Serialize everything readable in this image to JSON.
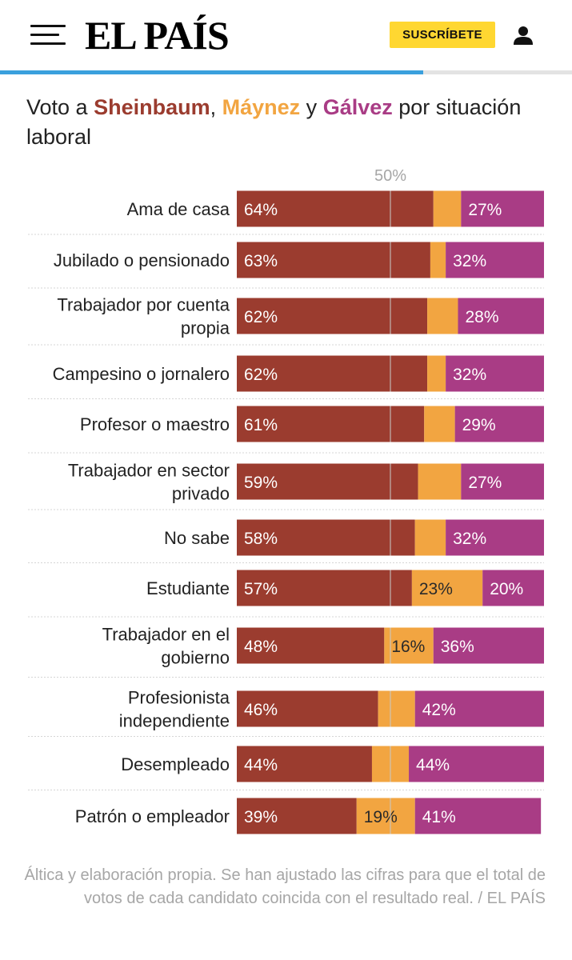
{
  "header": {
    "logo": "EL PAÍS",
    "subscribe_label": "SUSCRÍBETE",
    "reading_progress": 0.74
  },
  "title": {
    "prefix": "Voto a ",
    "sheinbaum": "Sheinbaum",
    "sep1": ", ",
    "maynez": "Máynez",
    "sep2": " y ",
    "galvez": "Gálvez",
    "suffix": " por situación laboral"
  },
  "colors": {
    "sheinbaum": "#9b3c2f",
    "maynez": "#f2a541",
    "galvez": "#a93c85",
    "reference_line": "#c9c9c9",
    "separator": "#d5d5d5"
  },
  "chart_data": {
    "type": "bar",
    "orientation": "horizontal",
    "stacked": true,
    "title": "Voto a Sheinbaum, Máynez y Gálvez por situación laboral",
    "reference_line": {
      "value": 50,
      "label": "50%"
    },
    "xlim": [
      0,
      100
    ],
    "categories": [
      [
        "Ama de casa"
      ],
      [
        "Jubilado o pensionado"
      ],
      [
        "Trabajador por cuenta",
        "propia"
      ],
      [
        "Campesino o jornalero"
      ],
      [
        "Profesor o maestro"
      ],
      [
        "Trabajador en sector",
        "privado"
      ],
      [
        "No sabe"
      ],
      [
        "Estudiante"
      ],
      [
        "Trabajador en el",
        "gobierno"
      ],
      [
        "Profesionista",
        "independiente"
      ],
      [
        "Desempleado"
      ],
      [
        "Patrón o empleador"
      ]
    ],
    "series": [
      {
        "name": "Sheinbaum",
        "values": [
          64,
          63,
          62,
          62,
          61,
          59,
          58,
          57,
          48,
          46,
          44,
          39
        ],
        "labels": [
          "64%",
          "63%",
          "62%",
          "62%",
          "61%",
          "59%",
          "58%",
          "57%",
          "48%",
          "46%",
          "44%",
          "39%"
        ]
      },
      {
        "name": "Máynez",
        "values": [
          9,
          5,
          10,
          6,
          10,
          14,
          10,
          23,
          16,
          12,
          12,
          19
        ],
        "labels": [
          "",
          "",
          "",
          "",
          "",
          "",
          "",
          "23%",
          "16%",
          "",
          "",
          "19%"
        ]
      },
      {
        "name": "Gálvez",
        "values": [
          27,
          32,
          28,
          32,
          29,
          27,
          32,
          20,
          36,
          42,
          44,
          41
        ],
        "labels": [
          "27%",
          "32%",
          "28%",
          "32%",
          "29%",
          "27%",
          "32%",
          "20%",
          "36%",
          "42%",
          "44%",
          "41%"
        ]
      }
    ]
  },
  "source": "Áltica y elaboración propia. Se han ajustado las cifras para que el total de votos de cada candidato coincida con el resultado real. / EL PAÍS"
}
